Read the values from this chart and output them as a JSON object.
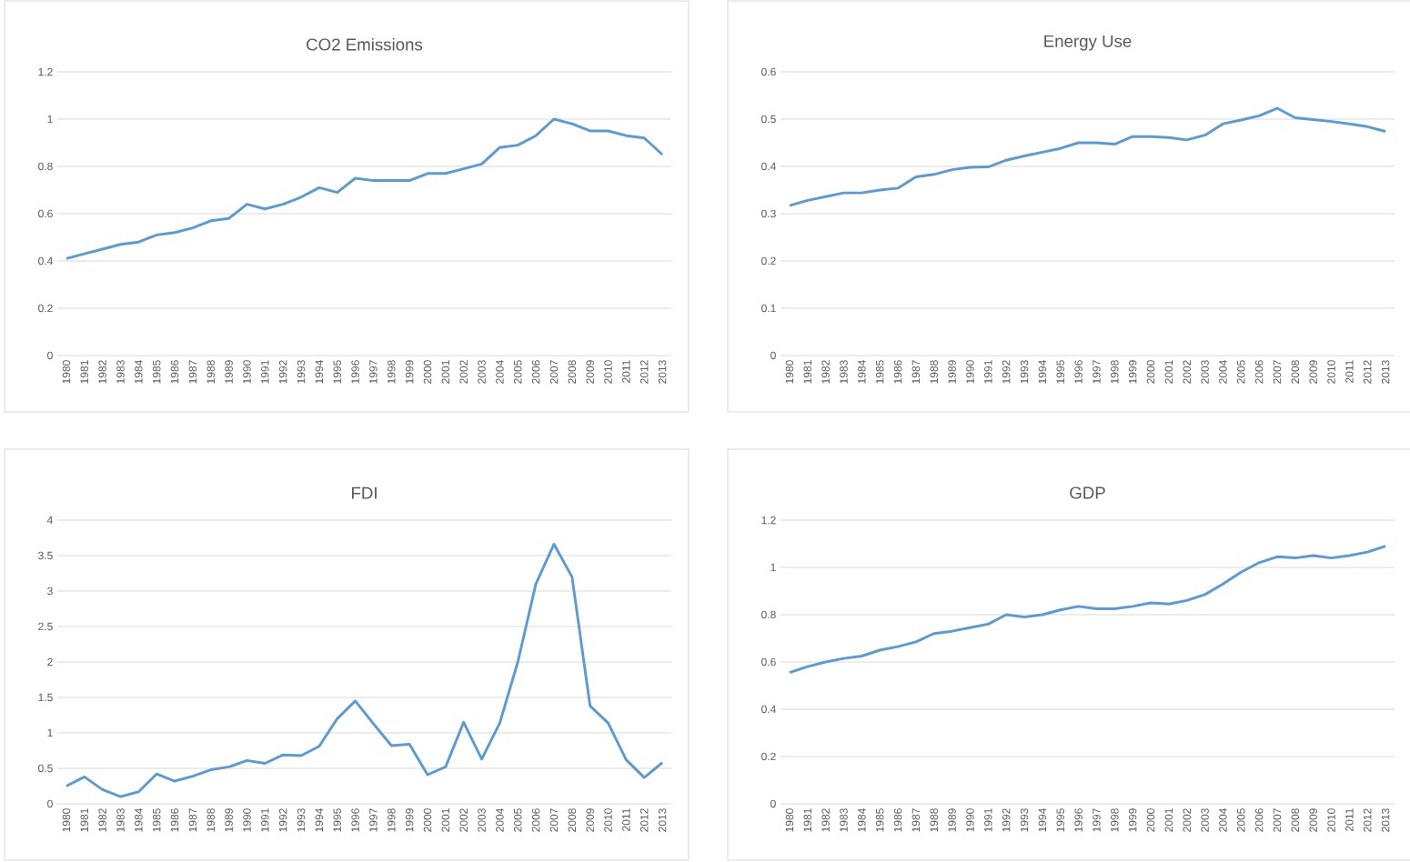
{
  "chart_data": [
    {
      "type": "line",
      "title": "CO2 Emissions",
      "categories": [
        "1980",
        "1981",
        "1982",
        "1983",
        "1984",
        "1985",
        "1986",
        "1987",
        "1988",
        "1989",
        "1990",
        "1991",
        "1992",
        "1993",
        "1994",
        "1995",
        "1996",
        "1997",
        "1998",
        "1999",
        "2000",
        "2001",
        "2002",
        "2003",
        "2004",
        "2005",
        "2006",
        "2007",
        "2008",
        "2009",
        "2010",
        "2011",
        "2012",
        "2013"
      ],
      "values": [
        0.41,
        0.43,
        0.45,
        0.47,
        0.48,
        0.51,
        0.52,
        0.54,
        0.57,
        0.58,
        0.64,
        0.62,
        0.64,
        0.67,
        0.71,
        0.69,
        0.75,
        0.74,
        0.74,
        0.74,
        0.77,
        0.77,
        0.79,
        0.81,
        0.88,
        0.89,
        0.93,
        1.0,
        0.98,
        0.95,
        0.95,
        0.93,
        0.92,
        0.85
      ],
      "color": "#5b9bd5",
      "ylim": [
        0,
        1.2
      ],
      "yticks": [
        0,
        0.2,
        0.4,
        0.6,
        0.8,
        1,
        1.2
      ],
      "grid": "y"
    },
    {
      "type": "line",
      "title": "Energy Use",
      "categories": [
        "1980",
        "1981",
        "1982",
        "1983",
        "1984",
        "1985",
        "1986",
        "1987",
        "1988",
        "1989",
        "1990",
        "1991",
        "1992",
        "1993",
        "1994",
        "1995",
        "1996",
        "1997",
        "1998",
        "1999",
        "2000",
        "2001",
        "2002",
        "2003",
        "2004",
        "2005",
        "2006",
        "2007",
        "2008",
        "2009",
        "2010",
        "2011",
        "2012",
        "2013"
      ],
      "values": [
        0.317,
        0.328,
        0.336,
        0.344,
        0.344,
        0.35,
        0.354,
        0.378,
        0.383,
        0.393,
        0.398,
        0.399,
        0.413,
        0.422,
        0.43,
        0.438,
        0.45,
        0.45,
        0.447,
        0.463,
        0.463,
        0.461,
        0.456,
        0.466,
        0.49,
        0.498,
        0.507,
        0.523,
        0.503,
        0.499,
        0.495,
        0.49,
        0.484,
        0.474
      ],
      "color": "#5b9bd5",
      "ylim": [
        0,
        0.6
      ],
      "yticks": [
        0,
        0.1,
        0.2,
        0.3,
        0.4,
        0.5,
        0.6
      ],
      "grid": "y"
    },
    {
      "type": "line",
      "title": "FDI",
      "categories": [
        "1980",
        "1981",
        "1982",
        "1983",
        "1984",
        "1985",
        "1986",
        "1987",
        "1988",
        "1989",
        "1990",
        "1991",
        "1992",
        "1993",
        "1994",
        "1995",
        "1996",
        "1997",
        "1998",
        "1999",
        "2000",
        "2001",
        "2002",
        "2003",
        "2004",
        "2005",
        "2006",
        "2007",
        "2008",
        "2009",
        "2010",
        "2011",
        "2012",
        "2013"
      ],
      "values": [
        0.25,
        0.38,
        0.2,
        0.1,
        0.17,
        0.42,
        0.32,
        0.39,
        0.48,
        0.52,
        0.61,
        0.57,
        0.69,
        0.68,
        0.81,
        1.2,
        1.45,
        1.13,
        0.82,
        0.84,
        0.41,
        0.52,
        1.15,
        0.63,
        1.14,
        2.0,
        3.1,
        3.66,
        3.2,
        1.38,
        1.14,
        0.62,
        0.37,
        0.58
      ],
      "color": "#5b9bd5",
      "ylim": [
        0,
        4
      ],
      "yticks": [
        0,
        0.5,
        1,
        1.5,
        2,
        2.5,
        3,
        3.5,
        4
      ],
      "grid": "y"
    },
    {
      "type": "line",
      "title": "GDP",
      "categories": [
        "1980",
        "1981",
        "1982",
        "1983",
        "1984",
        "1985",
        "1986",
        "1987",
        "1988",
        "1989",
        "1990",
        "1991",
        "1992",
        "1993",
        "1994",
        "1995",
        "1996",
        "1997",
        "1998",
        "1999",
        "2000",
        "2001",
        "2002",
        "2003",
        "2004",
        "2005",
        "2006",
        "2007",
        "2008",
        "2009",
        "2010",
        "2011",
        "2012",
        "2013"
      ],
      "values": [
        0.555,
        0.58,
        0.6,
        0.615,
        0.625,
        0.65,
        0.665,
        0.685,
        0.72,
        0.73,
        0.745,
        0.76,
        0.8,
        0.79,
        0.8,
        0.82,
        0.835,
        0.825,
        0.825,
        0.835,
        0.85,
        0.845,
        0.86,
        0.885,
        0.93,
        0.98,
        1.02,
        1.045,
        1.04,
        1.05,
        1.04,
        1.05,
        1.065,
        1.09
      ],
      "color": "#5b9bd5",
      "ylim": [
        0,
        1.2
      ],
      "yticks": [
        0,
        0.2,
        0.4,
        0.6,
        0.8,
        1,
        1.2
      ],
      "grid": "y"
    }
  ]
}
